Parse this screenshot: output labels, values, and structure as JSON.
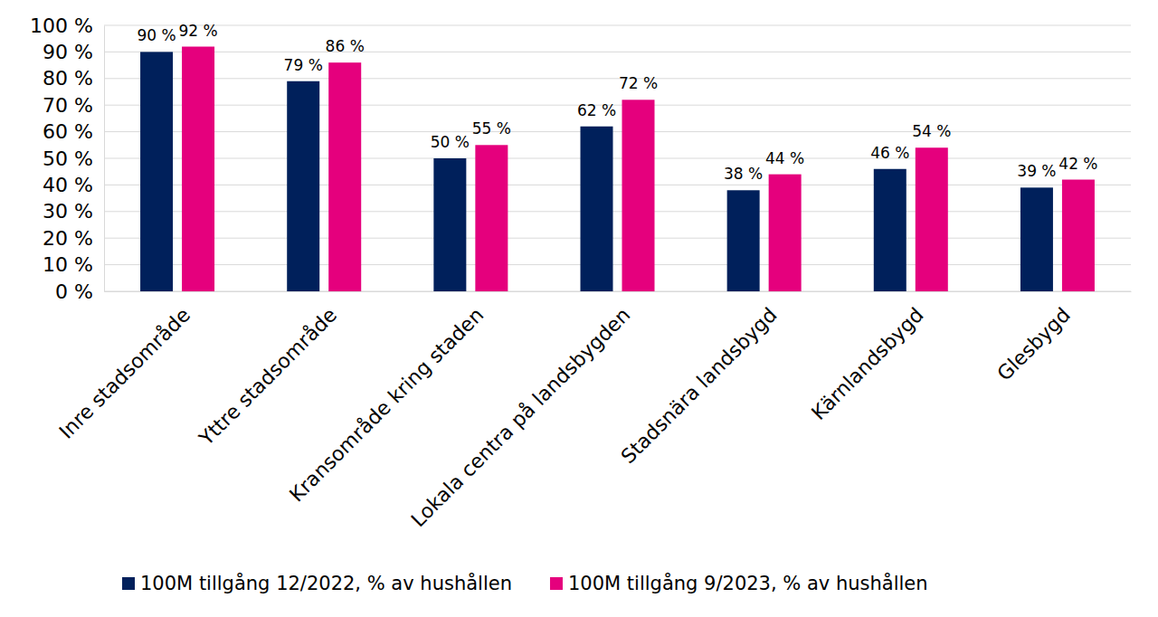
{
  "chart_data": {
    "type": "bar",
    "categories": [
      "Inre stadsområde",
      "Yttre stadsområde",
      "Kransområde kring staden",
      "Lokala centra på landsbygden",
      "Stadsnära landsbygd",
      "Kärnlandsbygd",
      "Glesbygd"
    ],
    "series": [
      {
        "name": "100M tillgång 12/2022, % av hushållen",
        "color": "#00205b",
        "values": [
          90,
          79,
          50,
          62,
          38,
          46,
          39
        ],
        "value_labels": [
          "90 %",
          "79 %",
          "50 %",
          "62 %",
          "38 %",
          "46 %",
          "39 %"
        ]
      },
      {
        "name": "100M tillgång 9/2023, % av hushållen",
        "color": "#e5007d",
        "values": [
          92,
          86,
          55,
          72,
          44,
          54,
          42
        ],
        "value_labels": [
          "92 %",
          "86 %",
          "55 %",
          "72 %",
          "44 %",
          "54 %",
          "42 %"
        ]
      }
    ],
    "ylim": [
      0,
      100
    ],
    "yticks": [
      {
        "value": 0,
        "label": "0 %"
      },
      {
        "value": 10,
        "label": "10 %"
      },
      {
        "value": 20,
        "label": "20 %"
      },
      {
        "value": 30,
        "label": "30 %"
      },
      {
        "value": 40,
        "label": "40 %"
      },
      {
        "value": 50,
        "label": "50 %"
      },
      {
        "value": 60,
        "label": "60 %"
      },
      {
        "value": 70,
        "label": "70 %"
      },
      {
        "value": 80,
        "label": "80 %"
      },
      {
        "value": 90,
        "label": "90 %"
      },
      {
        "value": 100,
        "label": "100 %"
      }
    ],
    "grid": true,
    "legend": "bottom",
    "data_labels": true
  }
}
